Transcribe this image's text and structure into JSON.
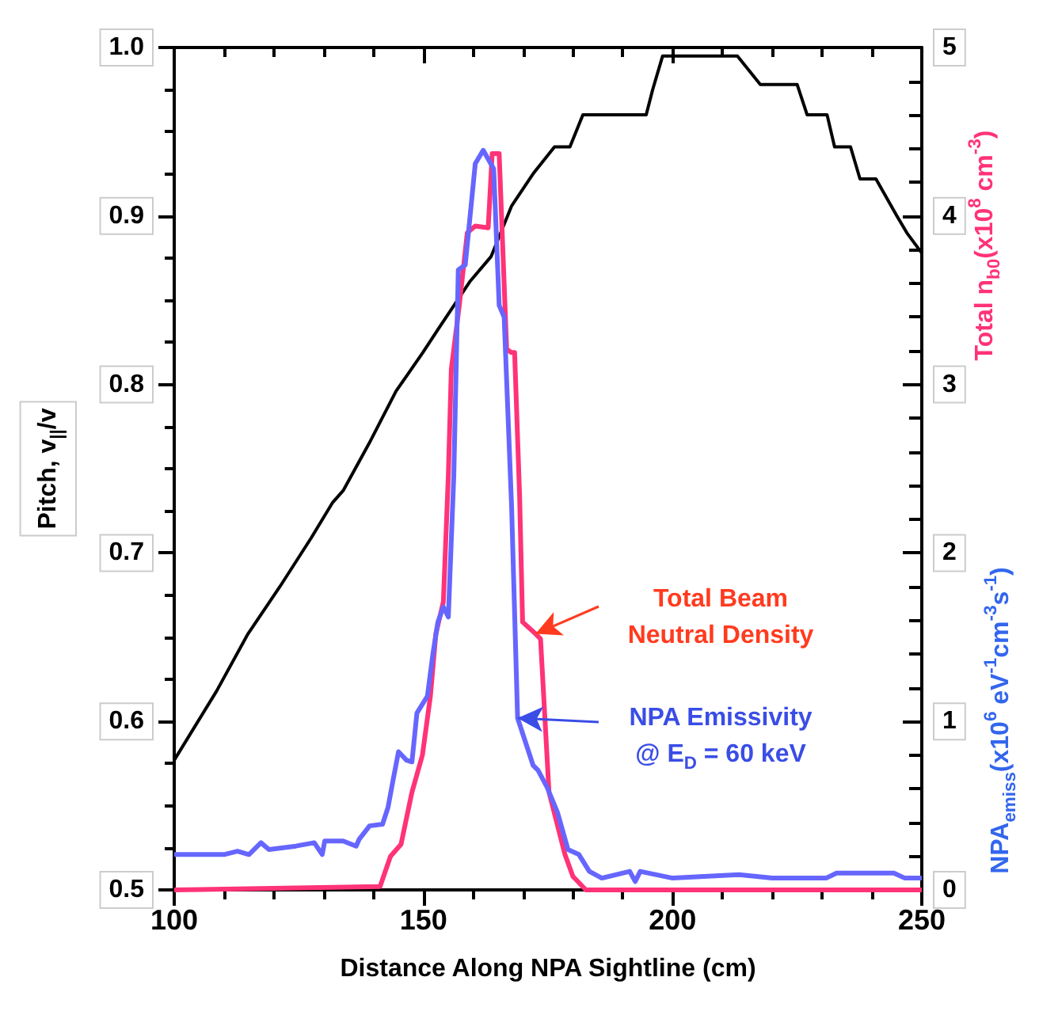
{
  "chart_data": {
    "type": "line",
    "xlabel": "Distance Along NPA Sightline (cm)",
    "ylabel": "Pitch, v$_{||}$/v",
    "y2label": "Total n$_{b0}$(x10$^{8}$ cm$^{-3}$)",
    "y3label": "NPA$_{emiss}$(x10$^{6}$ eV$^{-1}$cm$^{-3}$s$^{-1}$)",
    "xlim": [
      100,
      250
    ],
    "xticks": [
      100,
      150,
      200,
      250
    ],
    "ylim": [
      0.5,
      1.0
    ],
    "yticks": [
      0.5,
      0.6,
      0.7,
      0.8,
      0.9,
      {
        "value": 1.0,
        "label": "1.0"
      }
    ],
    "y2lim": [
      0,
      5
    ],
    "y2ticks": [
      0,
      1,
      2,
      3,
      4,
      5
    ],
    "marker": "none",
    "grid": false,
    "annotations": [
      {
        "text": "Total Beam\nNeutral Density",
        "x": 172.5,
        "y": 0.652
      },
      {
        "text": "NPA Emissivity\n@ E$_{D}$ = 60 keV",
        "x": 168.9,
        "y": 0.602
      }
    ],
    "series": [
      {
        "color": "#000000",
        "x": [
          100,
          108.5,
          114.8,
          121.2,
          127.5,
          131.8,
          133.9,
          139.1,
          144.5,
          149.9,
          153,
          159.3,
          163.6,
          167.7,
          172,
          176.3,
          179.4,
          182,
          190,
          194.7,
          196,
          198,
          205,
          213,
          217.6,
          225,
          227,
          231,
          232.5,
          235.7,
          237.6,
          240.8,
          245,
          247,
          250
        ],
        "values": [
          0.577,
          0.618,
          0.652,
          0.68,
          0.709,
          0.73,
          0.737,
          0.765,
          0.796,
          0.819,
          0.833,
          0.861,
          0.876,
          0.906,
          0.925,
          0.941,
          0.941,
          0.96,
          0.96,
          0.96,
          0.975,
          0.995,
          0.995,
          0.995,
          0.978,
          0.978,
          0.96,
          0.96,
          0.941,
          0.941,
          0.922,
          0.922,
          0.9,
          0.89,
          0.878
        ]
      },
      {
        "color": "#ff3377",
        "axis": "y2",
        "x": [
          100,
          141.3,
          143.4,
          145.5,
          147.7,
          149.8,
          151.4,
          152.5,
          154,
          155,
          155.6,
          157.2,
          158.8,
          160.4,
          163,
          163.8,
          165.2,
          166.7,
          167.6,
          168.3,
          169.3,
          169.9,
          172.5,
          173.5,
          175.2,
          178.4,
          180,
          182.6,
          250
        ],
        "values": [
          0,
          0.02,
          0.2,
          0.27,
          0.58,
          0.8,
          1.15,
          1.52,
          1.71,
          2.46,
          3.09,
          3.47,
          3.9,
          3.94,
          3.93,
          4.37,
          4.37,
          3.21,
          3.19,
          3.19,
          2.34,
          1.59,
          1.52,
          1.49,
          0.58,
          0.21,
          0.08,
          0,
          0
        ]
      },
      {
        "color": "#6666ff",
        "axis": "y2",
        "x": [
          100,
          110,
          112.7,
          115,
          117.4,
          119,
          124.4,
          128.1,
          129.7,
          130.2,
          133.9,
          136.5,
          137.1,
          139.2,
          141.8,
          142.9,
          143.9,
          145,
          146.6,
          147.7,
          148.7,
          150.8,
          151.9,
          152.9,
          154,
          155,
          156.1,
          157,
          158.4,
          160.4,
          162,
          164.1,
          165.2,
          166.2,
          167.7,
          168.9,
          172,
          173,
          174.8,
          176.9,
          179,
          181.2,
          183.3,
          185.8,
          191.4,
          192.5,
          193.5,
          200,
          213.3,
          220,
          230.8,
          232.9,
          244.4,
          246.6,
          250
        ],
        "values": [
          0.21,
          0.21,
          0.23,
          0.21,
          0.28,
          0.24,
          0.26,
          0.28,
          0.21,
          0.29,
          0.29,
          0.26,
          0.3,
          0.38,
          0.39,
          0.49,
          0.65,
          0.82,
          0.77,
          0.76,
          1.05,
          1.15,
          1.4,
          1.59,
          1.68,
          1.62,
          2.46,
          3.68,
          3.71,
          4.31,
          4.39,
          4.28,
          3.47,
          3.4,
          2.27,
          1.02,
          0.74,
          0.71,
          0.61,
          0.46,
          0.24,
          0.21,
          0.11,
          0.07,
          0.11,
          0.05,
          0.11,
          0.07,
          0.09,
          0.07,
          0.07,
          0.1,
          0.1,
          0.07,
          0.07
        ]
      }
    ]
  }
}
